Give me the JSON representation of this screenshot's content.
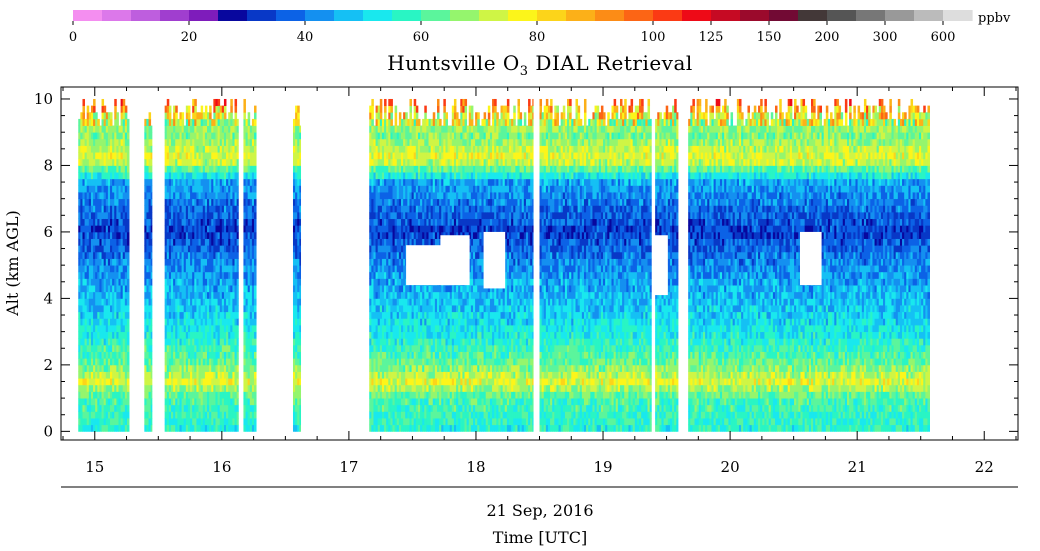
{
  "chart_data": {
    "type": "heatmap",
    "title_prefix": "Huntsville O",
    "title_sub": "3",
    "title_suffix": " DIAL Retrieval",
    "ylabel": "Alt (km AGL)",
    "date_label": "21 Sep, 2016",
    "xlabel": "Time [UTC]",
    "xlim": [
      14.75,
      22.25
    ],
    "ylim": [
      -0.2,
      10.3
    ],
    "x_ticks": [
      "15",
      "16",
      "17",
      "18",
      "19",
      "20",
      "21",
      "22"
    ],
    "y_ticks": [
      "0",
      "2",
      "4",
      "6",
      "8",
      "10"
    ],
    "colorbar": {
      "unit": "ppbv",
      "tick_labels": [
        "0",
        "20",
        "40",
        "60",
        "80",
        "100",
        "125",
        "150",
        "200",
        "300",
        "600"
      ],
      "colors": [
        "#f48ef0",
        "#dc78ea",
        "#be5ede",
        "#a03ecf",
        "#7e1cbb",
        "#08079e",
        "#0838c7",
        "#0c62e6",
        "#1490f0",
        "#15c0f4",
        "#19e8ee",
        "#29f5c4",
        "#5bf59c",
        "#95f56d",
        "#cff545",
        "#fcf51a",
        "#fcd41a",
        "#fcb018",
        "#fc8c16",
        "#fc6515",
        "#fb3a14",
        "#ee0a17",
        "#c60a23",
        "#9b0a2c",
        "#720a34",
        "#433838",
        "#555555",
        "#777777",
        "#999999",
        "#bbbbbb",
        "#dddddd"
      ]
    },
    "profile_levels_km": [
      0,
      1,
      1.5,
      2,
      3,
      4,
      5,
      5.7,
      6,
      6.5,
      7.5,
      8.2,
      9,
      9.7,
      10
    ],
    "profile_values_ppbv": [
      56,
      60,
      75,
      64,
      53,
      47,
      42,
      36,
      33,
      37,
      45,
      76,
      64,
      86,
      104
    ],
    "time_segments_utc": [
      [
        14.87,
        15.27
      ],
      [
        15.39,
        15.45
      ],
      [
        15.55,
        16.13
      ],
      [
        16.17,
        16.27
      ],
      [
        16.56,
        16.62
      ],
      [
        17.16,
        18.45
      ],
      [
        18.5,
        19.38
      ],
      [
        19.41,
        19.59
      ],
      [
        19.67,
        21.57
      ]
    ],
    "data_gaps": [
      {
        "t": [
          17.45,
          17.83
        ],
        "alt_km": [
          4.4,
          5.6
        ]
      },
      {
        "t": [
          17.72,
          17.95
        ],
        "alt_km": [
          4.4,
          5.9
        ]
      },
      {
        "t": [
          18.06,
          18.23
        ],
        "alt_km": [
          4.3,
          6.0
        ]
      },
      {
        "t": [
          19.39,
          19.51
        ],
        "alt_km": [
          4.1,
          5.9
        ]
      },
      {
        "t": [
          20.55,
          20.72
        ],
        "alt_km": [
          4.4,
          6.0
        ]
      }
    ]
  }
}
